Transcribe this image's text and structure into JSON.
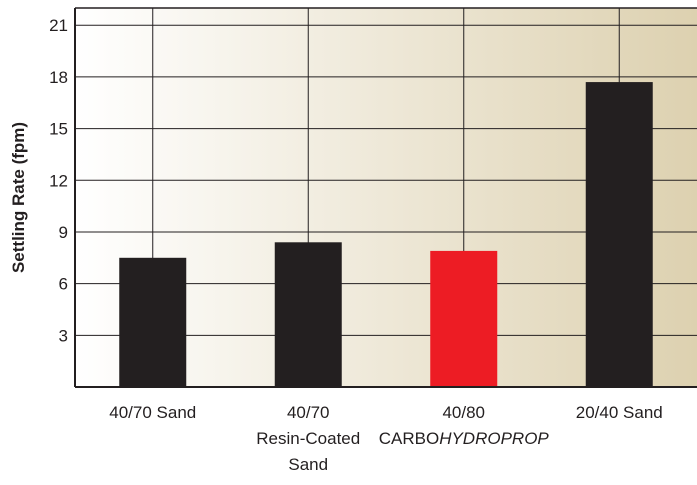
{
  "chart_data": {
    "type": "bar",
    "title": "",
    "xlabel": "",
    "ylabel": "Settling Rate (fpm)",
    "ylim": [
      0,
      22
    ],
    "yticks": [
      3,
      6,
      9,
      12,
      15,
      18,
      21
    ],
    "grid": true,
    "categories": [
      {
        "lines": [
          [
            {
              "text": "40/70 Sand",
              "italic": false
            }
          ]
        ]
      },
      {
        "lines": [
          [
            {
              "text": "40/70",
              "italic": false
            }
          ],
          [
            {
              "text": "Resin-Coated",
              "italic": false
            }
          ],
          [
            {
              "text": "Sand",
              "italic": false
            }
          ]
        ]
      },
      {
        "lines": [
          [
            {
              "text": "40/80",
              "italic": false
            }
          ],
          [
            {
              "text": "CARBO",
              "italic": false
            },
            {
              "text": "HYDROPROP",
              "italic": true
            }
          ]
        ]
      },
      {
        "lines": [
          [
            {
              "text": "20/40 Sand",
              "italic": false
            }
          ]
        ]
      }
    ],
    "values": [
      7.5,
      8.4,
      7.9,
      17.7
    ],
    "bar_colors": [
      "#231f20",
      "#231f20",
      "#ed1c24",
      "#231f20"
    ],
    "colors": {
      "plot_bg_left": "#ffffff",
      "plot_bg_right": "#ddd1b0",
      "grid": "#231f20",
      "axis": "#231f20"
    }
  }
}
